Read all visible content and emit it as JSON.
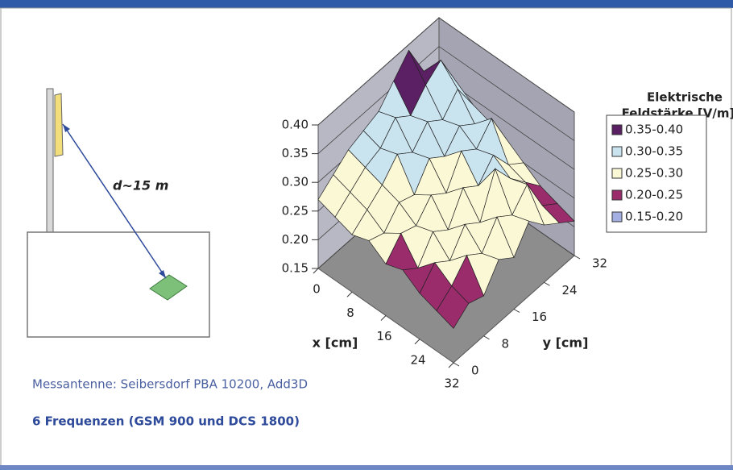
{
  "diagram": {
    "distance_label": "d~15 m"
  },
  "caption": "Messantenne: Seibersdorf  PBA 10200, Add3D",
  "subtitle": "6 Frequenzen (GSM 900  und DCS 1800)",
  "chart_data": {
    "type": "surface",
    "x_label": "x [cm]",
    "y_label": "y [cm]",
    "legend_title": [
      "Elektrische",
      "Feldstärke [V/m]"
    ],
    "x": [
      0,
      4,
      8,
      12,
      16,
      20,
      24,
      28,
      32
    ],
    "y": [
      0,
      4,
      8,
      12,
      16,
      20,
      24,
      28,
      32
    ],
    "z": [
      [
        0.27,
        0.29,
        0.31,
        0.32,
        0.33,
        0.36,
        0.39,
        0.33,
        0.3
      ],
      [
        0.26,
        0.28,
        0.3,
        0.31,
        0.34,
        0.32,
        0.35,
        0.37,
        0.31
      ],
      [
        0.25,
        0.27,
        0.29,
        0.32,
        0.3,
        0.33,
        0.31,
        0.34,
        0.29
      ],
      [
        0.26,
        0.25,
        0.28,
        0.27,
        0.31,
        0.29,
        0.32,
        0.3,
        0.28
      ],
      [
        0.24,
        0.27,
        0.26,
        0.29,
        0.27,
        0.32,
        0.3,
        0.33,
        0.27
      ],
      [
        0.25,
        0.23,
        0.27,
        0.25,
        0.3,
        0.28,
        0.31,
        0.27,
        0.25
      ],
      [
        0.23,
        0.26,
        0.24,
        0.28,
        0.26,
        0.33,
        0.29,
        0.26,
        0.23
      ],
      [
        0.22,
        0.24,
        0.27,
        0.25,
        0.29,
        0.27,
        0.3,
        0.24,
        0.22
      ],
      [
        0.21,
        0.23,
        0.22,
        0.26,
        0.24,
        0.28,
        0.25,
        0.23,
        0.21
      ]
    ],
    "xlim": [
      0,
      32
    ],
    "ylim": [
      0,
      32
    ],
    "zlim": [
      0.15,
      0.4
    ],
    "xticks": [
      0,
      8,
      16,
      24,
      32
    ],
    "yticks": [
      0,
      8,
      16,
      24,
      32
    ],
    "zticks": [
      {
        "value": 0.15,
        "label": "0.15"
      },
      {
        "value": 0.2,
        "label": "0.20"
      },
      {
        "value": 0.25,
        "label": "0.25"
      },
      {
        "value": 0.3,
        "label": "0.30"
      },
      {
        "value": 0.35,
        "label": "0.35"
      },
      {
        "value": 0.4,
        "label": "0.40"
      }
    ],
    "bands": [
      {
        "label": "0.35-0.40",
        "min": 0.35,
        "max": 0.4,
        "color": "#5b1f63"
      },
      {
        "label": "0.30-0.35",
        "min": 0.3,
        "max": 0.35,
        "color": "#c9e3ef"
      },
      {
        "label": "0.25-0.30",
        "min": 0.25,
        "max": 0.3,
        "color": "#fbf8d6"
      },
      {
        "label": "0.20-0.25",
        "min": 0.2,
        "max": 0.25,
        "color": "#9a2c6c"
      },
      {
        "label": "0.15-0.20",
        "min": 0.15,
        "max": 0.2,
        "color": "#a3aee2"
      }
    ]
  }
}
